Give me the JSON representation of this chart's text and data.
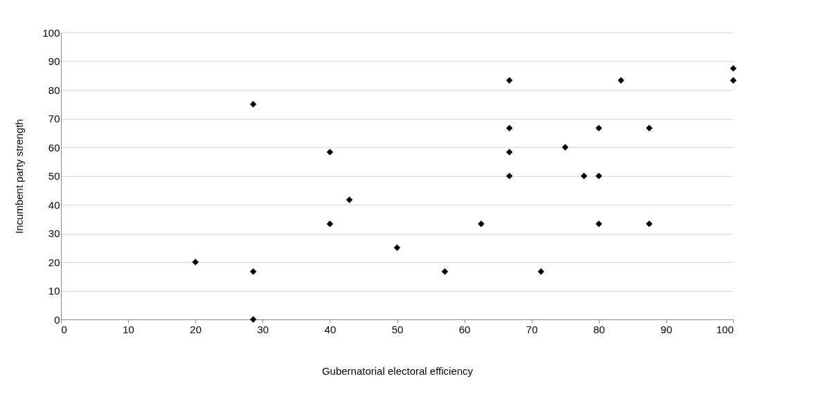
{
  "chart_data": {
    "type": "scatter",
    "xlabel": "Gubernatorial electoral efficiency",
    "ylabel": "Incumbent party strength",
    "x": [
      20,
      28.6,
      28.6,
      28.6,
      40,
      40,
      42.9,
      50,
      57.1,
      62.5,
      66.7,
      66.7,
      66.7,
      66.7,
      71.4,
      75,
      77.8,
      80,
      80,
      80,
      83.3,
      87.5,
      87.5,
      100,
      100
    ],
    "series": [
      {
        "color": "#000000",
        "values": [
          20,
          16.7,
          0,
          75,
          58.3,
          33.3,
          41.7,
          25,
          16.7,
          33.3,
          83.3,
          66.7,
          58.3,
          50,
          16.7,
          60,
          50,
          66.7,
          50,
          33.3,
          83.3,
          66.7,
          33.3,
          87.5,
          83.3
        ]
      }
    ],
    "xlim": [
      0,
      100
    ],
    "xticks": [
      0,
      10,
      20,
      30,
      40,
      50,
      60,
      70,
      80,
      90,
      100
    ],
    "ylim": [
      0,
      100
    ],
    "yticks": [
      0,
      10,
      20,
      30,
      40,
      50,
      60,
      70,
      80,
      90,
      100
    ],
    "grid": "y",
    "marker": "diamond",
    "legend": false
  }
}
